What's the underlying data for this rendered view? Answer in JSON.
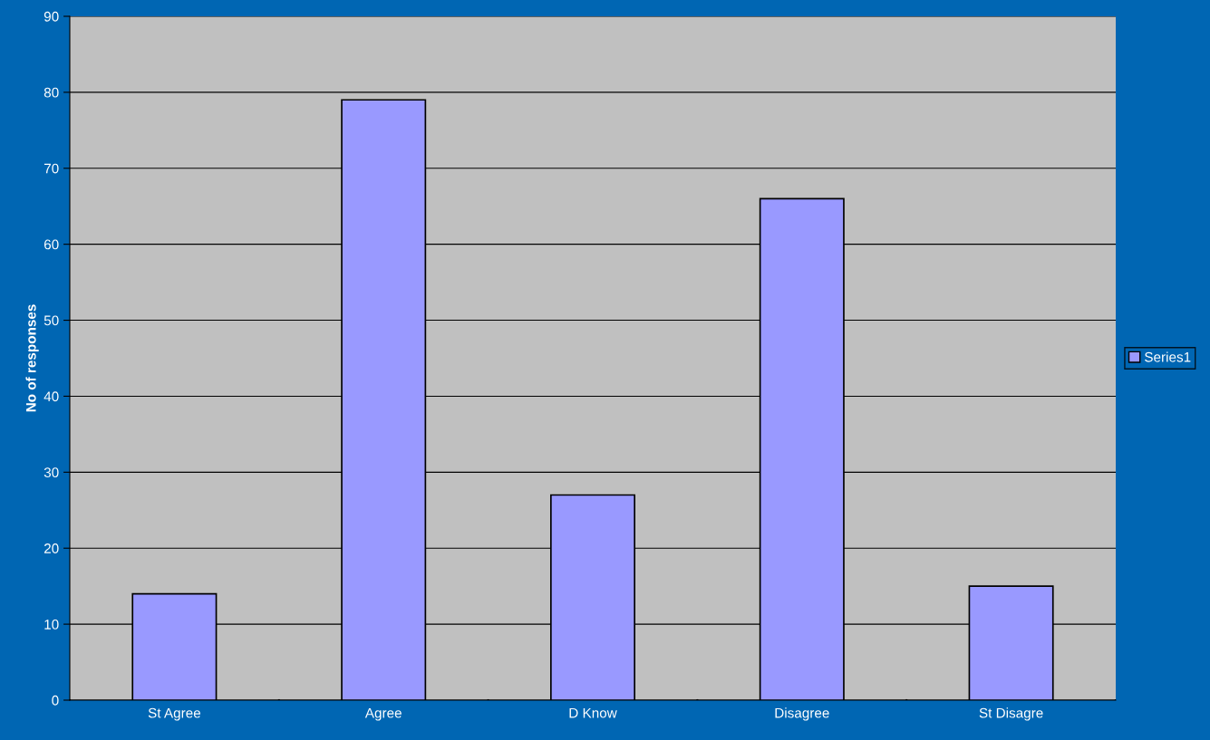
{
  "chart_data": {
    "type": "bar",
    "ylabel": "No of responses",
    "categories": [
      "St Agree",
      "Agree",
      "D Know",
      "Disagree",
      "St Disagre"
    ],
    "series": [
      {
        "name": "Series1",
        "color": "#9999ff",
        "values": [
          14,
          79,
          27,
          66,
          15
        ]
      }
    ],
    "ylim": [
      0,
      90
    ],
    "yticks": [
      0,
      10,
      20,
      30,
      40,
      50,
      60,
      70,
      80,
      90
    ],
    "grid": "y",
    "legend": "right"
  }
}
